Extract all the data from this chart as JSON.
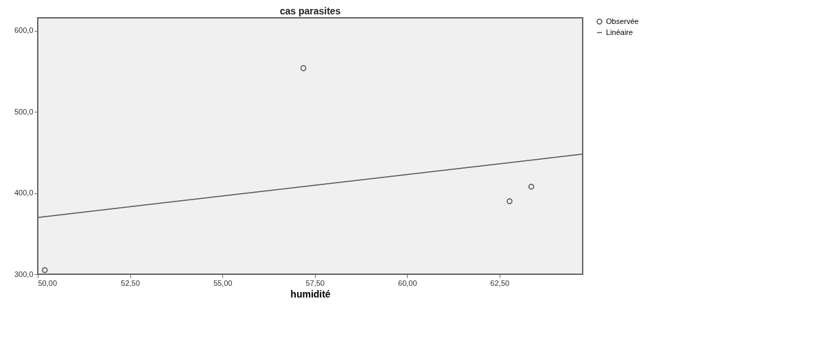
{
  "chart_data": {
    "type": "scatter",
    "title": "cas parasites",
    "xlabel": "humidité",
    "xlim": [
      50,
      64.75
    ],
    "ylim": [
      300,
      616
    ],
    "xticks": [
      {
        "value": 50,
        "label": "50,00"
      },
      {
        "value": 52.5,
        "label": "52,50"
      },
      {
        "value": 55,
        "label": "55,00"
      },
      {
        "value": 57.5,
        "label": "57,50"
      },
      {
        "value": 60,
        "label": "60,00"
      },
      {
        "value": 62.5,
        "label": "62,50"
      }
    ],
    "yticks": [
      {
        "value": 300,
        "label": "300,0"
      },
      {
        "value": 400,
        "label": "400,0"
      },
      {
        "value": 500,
        "label": "500,0"
      },
      {
        "value": 600,
        "label": "600,0"
      }
    ],
    "legend": "top right",
    "grid": false,
    "series": [
      {
        "name": "Observée",
        "color": "#555555",
        "marker": "circle",
        "x": [
          50.19,
          57.19,
          62.77,
          63.36
        ],
        "values": [
          305,
          554,
          390,
          408
        ]
      },
      {
        "name": "Linéaire",
        "type": "line",
        "color": "#555555",
        "x": [
          50,
          64.75
        ],
        "values": [
          370,
          448
        ]
      }
    ]
  }
}
